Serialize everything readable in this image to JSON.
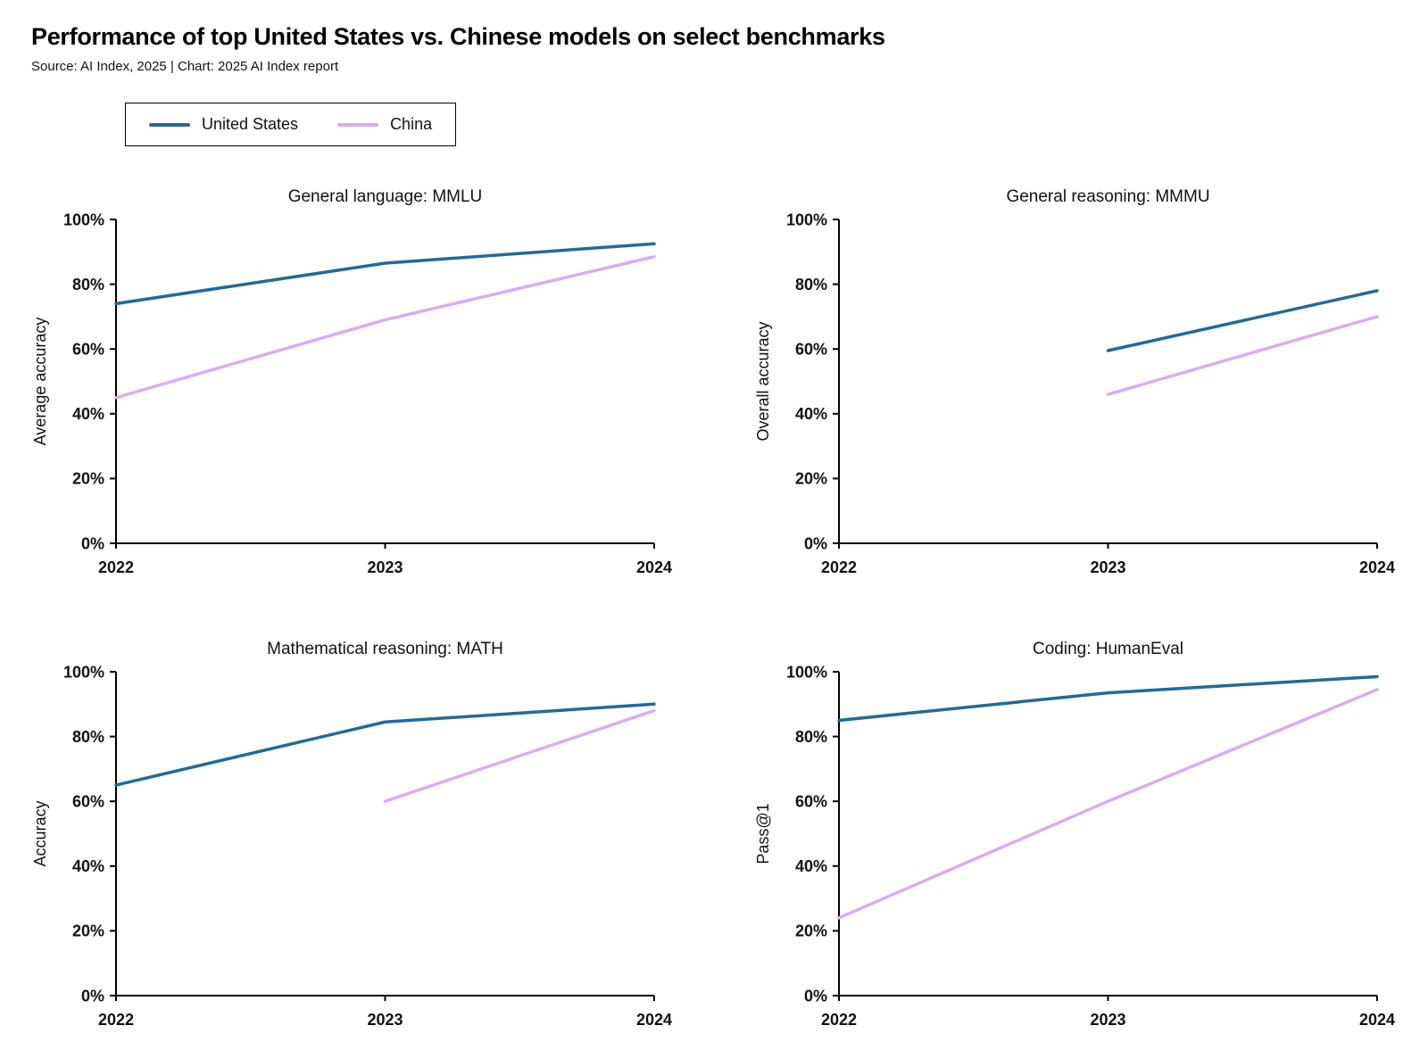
{
  "header": {
    "title": "Performance of top United States vs. Chinese models on select benchmarks",
    "subtitle": "Source: AI Index, 2025 | Chart: 2025 AI Index report"
  },
  "legend": {
    "items": [
      {
        "label": "United States",
        "color": "#1f6b9a"
      },
      {
        "label": "China",
        "color": "#dcabf2"
      }
    ]
  },
  "chart_data": [
    {
      "type": "line",
      "title": "General language: MMLU",
      "ylabel": "Average accuracy",
      "xlim": [
        2022,
        2024
      ],
      "xticks": [
        2022,
        2023,
        2024
      ],
      "ylim": [
        0,
        100
      ],
      "yticks": [
        0,
        20,
        40,
        60,
        80,
        100
      ],
      "ytick_suffix": "%",
      "grid": false,
      "series": [
        {
          "name": "United States",
          "color": "#1f6b9a",
          "points": [
            [
              2022,
              74
            ],
            [
              2023,
              86.5
            ],
            [
              2024,
              92.5
            ]
          ]
        },
        {
          "name": "China",
          "color": "#dcabf2",
          "points": [
            [
              2022,
              45
            ],
            [
              2023,
              69
            ],
            [
              2024,
              88.5
            ]
          ]
        }
      ]
    },
    {
      "type": "line",
      "title": "General reasoning: MMMU",
      "ylabel": "Overall accuracy",
      "xlim": [
        2022,
        2024
      ],
      "xticks": [
        2022,
        2023,
        2024
      ],
      "ylim": [
        0,
        100
      ],
      "yticks": [
        0,
        20,
        40,
        60,
        80,
        100
      ],
      "ytick_suffix": "%",
      "grid": false,
      "series": [
        {
          "name": "United States",
          "color": "#1f6b9a",
          "points": [
            [
              2023,
              59.5
            ],
            [
              2024,
              78
            ]
          ]
        },
        {
          "name": "China",
          "color": "#dcabf2",
          "points": [
            [
              2023,
              46
            ],
            [
              2024,
              70
            ]
          ]
        }
      ]
    },
    {
      "type": "line",
      "title": "Mathematical reasoning: MATH",
      "ylabel": "Accuracy",
      "xlim": [
        2022,
        2024
      ],
      "xticks": [
        2022,
        2023,
        2024
      ],
      "ylim": [
        0,
        100
      ],
      "yticks": [
        0,
        20,
        40,
        60,
        80,
        100
      ],
      "ytick_suffix": "%",
      "grid": false,
      "series": [
        {
          "name": "United States",
          "color": "#1f6b9a",
          "points": [
            [
              2022,
              65
            ],
            [
              2023,
              84.5
            ],
            [
              2024,
              90
            ]
          ]
        },
        {
          "name": "China",
          "color": "#dcabf2",
          "points": [
            [
              2023,
              60
            ],
            [
              2024,
              88
            ]
          ]
        }
      ]
    },
    {
      "type": "line",
      "title": "Coding: HumanEval",
      "ylabel": "Pass@1",
      "xlim": [
        2022,
        2024
      ],
      "xticks": [
        2022,
        2023,
        2024
      ],
      "ylim": [
        0,
        100
      ],
      "yticks": [
        0,
        20,
        40,
        60,
        80,
        100
      ],
      "ytick_suffix": "%",
      "grid": false,
      "series": [
        {
          "name": "United States",
          "color": "#1f6b9a",
          "points": [
            [
              2022,
              85
            ],
            [
              2023,
              93.5
            ],
            [
              2024,
              98.5
            ]
          ]
        },
        {
          "name": "China",
          "color": "#dcabf2",
          "points": [
            [
              2022,
              24
            ],
            [
              2023,
              60
            ],
            [
              2024,
              94.5
            ]
          ]
        }
      ]
    }
  ]
}
